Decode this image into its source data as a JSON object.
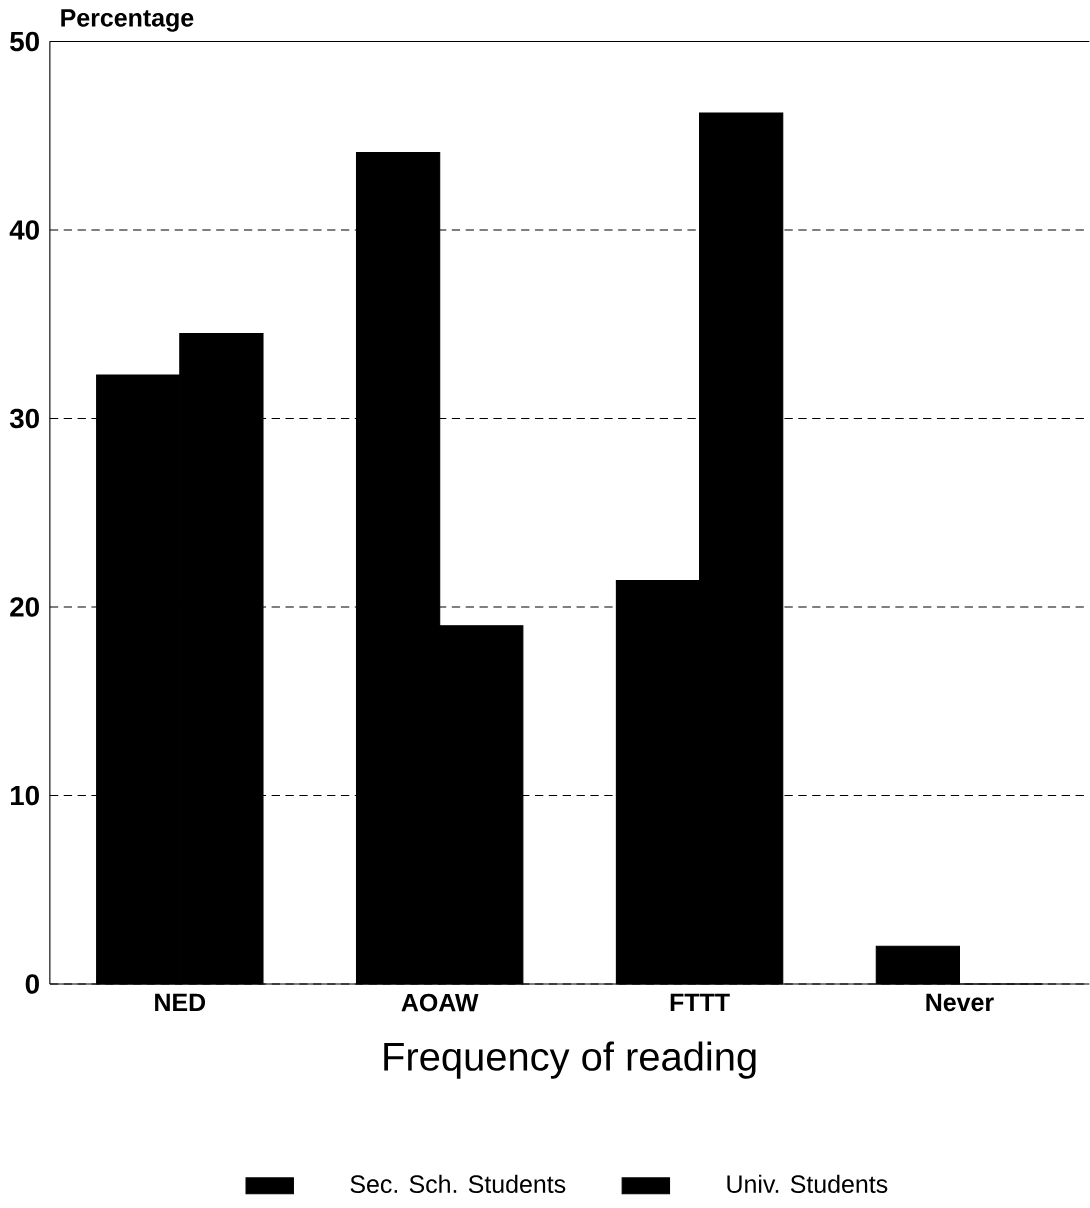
{
  "chart_data": {
    "type": "bar",
    "xlabel": "Frequency of reading",
    "ylabel": "Percentage",
    "categories": [
      "NED",
      "AOAW",
      "FTTT",
      "Never"
    ],
    "series": [
      {
        "name": "Sec. Sch. Students",
        "color": "#000000",
        "values": [
          32.3,
          44.1,
          21.4,
          2
        ]
      },
      {
        "name": "Univ. Students",
        "color": "#000000",
        "values": [
          34.5,
          19.0,
          46.2,
          0
        ]
      }
    ],
    "ylim": [
      0,
      50
    ],
    "yticks": [
      0,
      10,
      20,
      30,
      40,
      50
    ],
    "grid": "y",
    "legend": "bottom"
  }
}
